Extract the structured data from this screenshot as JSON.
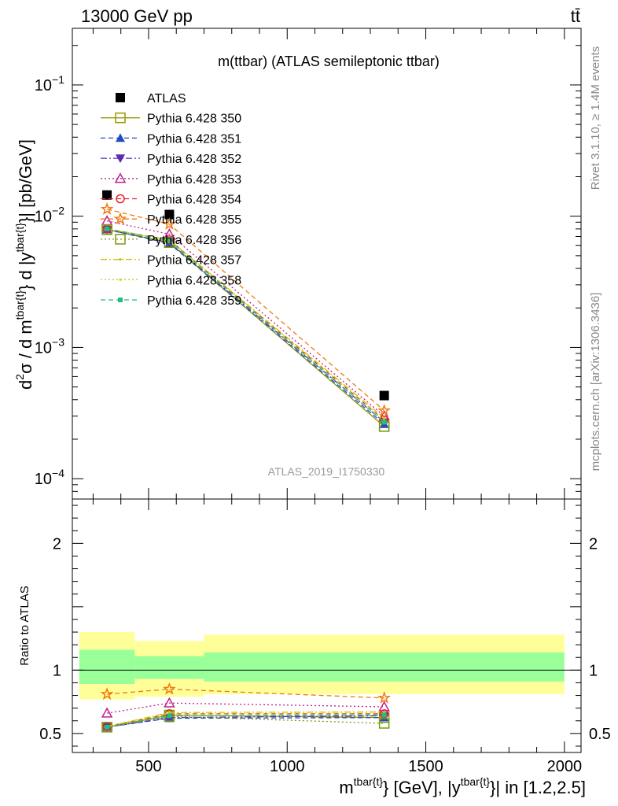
{
  "header": {
    "energy_label": "13000 GeV pp",
    "process_label": "tt̄"
  },
  "side_labels": {
    "rivet": "Rivet 3.1.10, ≥ 1.4M events",
    "source": "mcplots.cern.ch [arXiv:1306.3436]"
  },
  "chart_data": [
    {
      "type": "line",
      "panel": "main",
      "title": "m(ttbar) (ATLAS semileptonic ttbar)",
      "analysis_id": "ATLAS_2019_I1750330",
      "ylabel": "d²σ / d m^{tbar{t}} d |y^{tbar{t}}| [pb/GeV]",
      "ylabel_parts": {
        "sup2": "2",
        "sigma": "σ / d m",
        "sup1": "tbar{t}",
        "mid": "} d |y",
        "sup3": "tbar{t}",
        "end": "}| [pb/GeV]",
        "d": "d"
      },
      "yscale": "log",
      "ylim": [
        7e-05,
        0.27
      ],
      "xlim": [
        225,
        2060
      ],
      "y_tick_labels": [
        "10^{-4}",
        "10^{-3}",
        "10^{-2}",
        "10^{-1}"
      ],
      "y_ticks": [
        {
          "value": 0.0001,
          "base": "10",
          "exp": "−4"
        },
        {
          "value": 0.001,
          "base": "10",
          "exp": "−3"
        },
        {
          "value": 0.01,
          "base": "10",
          "exp": "−2"
        },
        {
          "value": 0.1,
          "base": "10",
          "exp": "−1"
        }
      ],
      "legend_position": "top-left",
      "x": [
        350,
        575,
        1350
      ],
      "series": [
        {
          "name": "ATLAS",
          "color": "#000000",
          "marker": "square-filled",
          "line": "none",
          "values": [
            0.0145,
            0.0103,
            0.00043
          ]
        },
        {
          "name": "Pythia 6.428 350",
          "color": "#999900",
          "marker": "square-open",
          "line": "solid",
          "values": [
            0.0079,
            0.0063,
            0.00025
          ]
        },
        {
          "name": "Pythia 6.428 351",
          "color": "#1f4fbf",
          "marker": "triangle-up-filled",
          "line": "dashed",
          "values": [
            0.0079,
            0.0062,
            0.00026
          ]
        },
        {
          "name": "Pythia 6.428 352",
          "color": "#5a2db0",
          "marker": "triangle-down-filled",
          "line": "dashdot",
          "values": [
            0.0079,
            0.0063,
            0.00027
          ]
        },
        {
          "name": "Pythia 6.428 353",
          "color": "#c0208e",
          "marker": "triangle-up-open",
          "line": "dotted",
          "values": [
            0.0092,
            0.0073,
            0.0003
          ]
        },
        {
          "name": "Pythia 6.428 354",
          "color": "#e6202a",
          "marker": "circle-open",
          "line": "dashed",
          "values": [
            0.008,
            0.0066,
            0.00028
          ]
        },
        {
          "name": "Pythia 6.428 355",
          "color": "#f07a10",
          "marker": "star",
          "line": "dashed",
          "values": [
            0.0113,
            0.0087,
            0.00033
          ]
        },
        {
          "name": "Pythia 6.428 356",
          "color": "#7a9a10",
          "marker": "square-open",
          "line": "dotted",
          "values": [
            0.0079,
            0.0063,
            0.00025
          ]
        },
        {
          "name": "Pythia 6.428 357",
          "color": "#d8c000",
          "marker": "dash-dot",
          "line": "dashdot",
          "values": [
            0.008,
            0.0066,
            0.00029
          ]
        },
        {
          "name": "Pythia 6.428 358",
          "color": "#c8d020",
          "marker": "dot",
          "line": "dotted",
          "values": [
            0.008,
            0.0066,
            0.00028
          ]
        },
        {
          "name": "Pythia 6.428 359",
          "color": "#22c080",
          "marker": "square-filled-small",
          "line": "dashed",
          "values": [
            0.008,
            0.0065,
            0.00027
          ]
        }
      ]
    },
    {
      "type": "line",
      "panel": "ratio",
      "ylabel": "Ratio to ATLAS",
      "xlabel": "m^{tbar{t}} [GeV], |y^{tbar{t}}| in [1.2,2.5]",
      "xlabel_parts": {
        "m": "m",
        "sup1": "tbar{t}",
        "mid": "} [GeV], |y",
        "sup2": "tbar{t}",
        "end": "}| in [1.2,2.5]"
      },
      "xlim": [
        225,
        2060
      ],
      "ylim": [
        0.35,
        2.35
      ],
      "x_ticks": [
        500,
        1000,
        1500,
        2000
      ],
      "x_tick_labels": [
        "500",
        "1000",
        "1500",
        "2000"
      ],
      "y_ticks": [
        0.5,
        1,
        2
      ],
      "y_tick_labels": [
        "0.5",
        "1",
        "2"
      ],
      "bins": [
        [
          250,
          450
        ],
        [
          450,
          700
        ],
        [
          700,
          2000
        ]
      ],
      "band_total": [
        [
          0.77,
          1.3
        ],
        [
          0.79,
          1.23
        ],
        [
          0.81,
          1.28
        ]
      ],
      "band_stat": [
        [
          0.89,
          1.16
        ],
        [
          0.93,
          1.11
        ],
        [
          0.91,
          1.14
        ]
      ],
      "x": [
        350,
        575,
        1350
      ],
      "series": [
        {
          "name": "Pythia 6.428 350",
          "color": "#999900",
          "values": [
            0.55,
            0.645,
            0.625
          ]
        },
        {
          "name": "Pythia 6.428 351",
          "color": "#1f4fbf",
          "values": [
            0.55,
            0.62,
            0.625
          ]
        },
        {
          "name": "Pythia 6.428 352",
          "color": "#5a2db0",
          "values": [
            0.55,
            0.625,
            0.64
          ]
        },
        {
          "name": "Pythia 6.428 353",
          "color": "#c0208e",
          "values": [
            0.66,
            0.74,
            0.71
          ]
        },
        {
          "name": "Pythia 6.428 354",
          "color": "#e6202a",
          "values": [
            0.555,
            0.655,
            0.655
          ]
        },
        {
          "name": "Pythia 6.428 355",
          "color": "#f07a10",
          "values": [
            0.81,
            0.85,
            0.78
          ]
        },
        {
          "name": "Pythia 6.428 356",
          "color": "#7a9a10",
          "values": [
            0.55,
            0.635,
            0.58
          ]
        },
        {
          "name": "Pythia 6.428 357",
          "color": "#d8c000",
          "values": [
            0.555,
            0.665,
            0.67
          ]
        },
        {
          "name": "Pythia 6.428 358",
          "color": "#c8d020",
          "values": [
            0.555,
            0.655,
            0.66
          ]
        },
        {
          "name": "Pythia 6.428 359",
          "color": "#22c080",
          "values": [
            0.55,
            0.64,
            0.645
          ]
        }
      ]
    }
  ]
}
